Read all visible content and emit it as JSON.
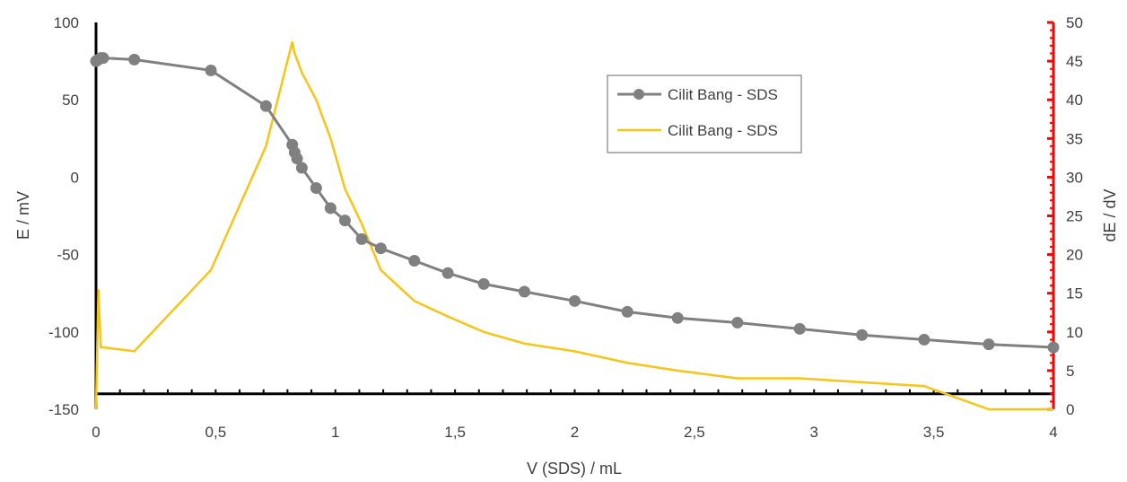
{
  "chart_data": {
    "type": "line",
    "xlabel": "V (SDS) / mL",
    "ylabel": "E / mV",
    "y2label": "dE / dV",
    "xlim": [
      0,
      4
    ],
    "ylim": [
      -150,
      100
    ],
    "y2lim": [
      0,
      50
    ],
    "x_ticks": [
      "0",
      "0,5",
      "1",
      "1,5",
      "2",
      "2,5",
      "3",
      "3,5",
      "4"
    ],
    "y_ticks": [
      "100",
      "50",
      "0",
      "-50",
      "-100",
      "-150"
    ],
    "y2_ticks": [
      "50",
      "45",
      "40",
      "35",
      "30",
      "25",
      "20",
      "15",
      "10",
      "5",
      "0"
    ],
    "x_axis_crossing_y": -140,
    "legend_position": "top-center",
    "series": [
      {
        "name": "Cilit Bang - SDS",
        "axis": "left",
        "color": "#808080",
        "marker": "circle",
        "x": [
          0,
          0.01,
          0.02,
          0.03,
          0.16,
          0.48,
          0.71,
          0.82,
          0.83,
          0.84,
          0.86,
          0.92,
          0.98,
          1.04,
          1.11,
          1.19,
          1.33,
          1.47,
          1.62,
          1.79,
          2.0,
          2.22,
          2.43,
          2.68,
          2.94,
          3.2,
          3.46,
          3.73,
          4.0
        ],
        "values": [
          75,
          76,
          77,
          77,
          76,
          69,
          46,
          21,
          16,
          12,
          6,
          -7,
          -20,
          -28,
          -40,
          -46,
          -54,
          -62,
          -69,
          -74,
          -80,
          -87,
          -91,
          -94,
          -98,
          -102,
          -105,
          -108,
          -110
        ]
      },
      {
        "name": "Cilit Bang - SDS",
        "axis": "right",
        "color": "#F5C518",
        "marker": "none",
        "x": [
          0,
          0.01,
          0.02,
          0.03,
          0.16,
          0.48,
          0.71,
          0.82,
          0.83,
          0.86,
          0.92,
          0.98,
          1.04,
          1.11,
          1.19,
          1.33,
          1.47,
          1.62,
          1.79,
          2.0,
          2.22,
          2.43,
          2.68,
          2.94,
          3.2,
          3.46,
          3.73,
          4.0
        ],
        "values": [
          0,
          15.5,
          8,
          8,
          7.5,
          18,
          34,
          47.5,
          46,
          43.5,
          40,
          35,
          28.5,
          24,
          18,
          14,
          12,
          10,
          8.5,
          7.5,
          6,
          5,
          4,
          4,
          3.5,
          3,
          0,
          0
        ]
      }
    ]
  },
  "colors": {
    "left_axis": "#000000",
    "right_axis": "#FF0000",
    "series1": "#808080",
    "series2": "#F5C518"
  }
}
